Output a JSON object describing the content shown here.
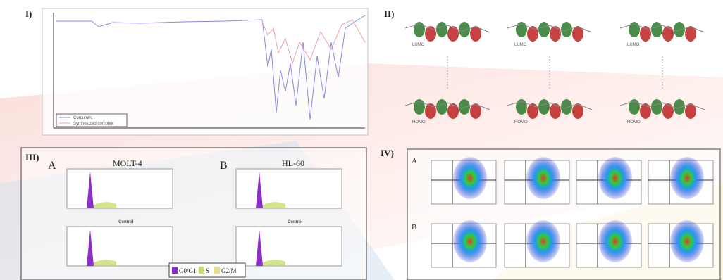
{
  "panels": [
    {
      "label": "I)",
      "legend": [
        "Curcumin",
        "Synthesized complex"
      ]
    },
    {
      "label": "II)",
      "orbitals": [
        "LUMO",
        "HOMO"
      ]
    },
    {
      "label": "III)",
      "subpanels": [
        {
          "letter": "A",
          "title": "MOLT-4",
          "caption": "Control"
        },
        {
          "letter": "B",
          "title": "HL-60",
          "caption": "Control"
        }
      ],
      "legend": [
        "G0/G1",
        "S",
        "G2/M"
      ]
    },
    {
      "label": "IV)",
      "rows": [
        "A",
        "B"
      ]
    }
  ]
}
